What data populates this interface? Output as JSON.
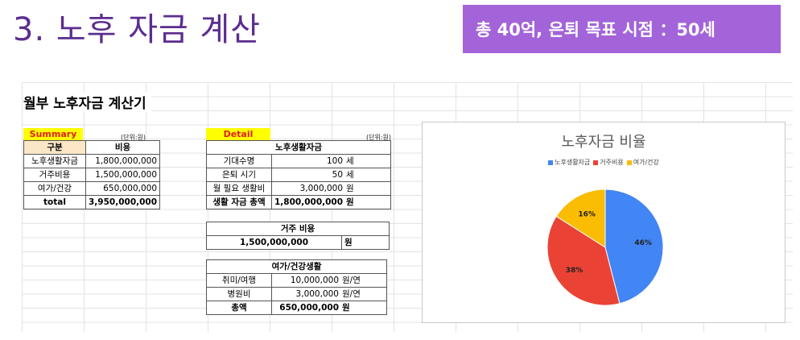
{
  "slide": {
    "title": "3. 노후 자금 계산",
    "goal": "총 40억, 은퇴 목표 시점 ：50세",
    "accent": "#a363d9",
    "title_color": "#5b2d8f"
  },
  "sheet": {
    "title": "월부 노후자금 계산기",
    "summary": {
      "label": "Summary",
      "unit": "(단위:원)",
      "headers": [
        "구분",
        "비용"
      ],
      "rows": [
        {
          "name": "노후생활자금",
          "value": "1,800,000,000"
        },
        {
          "name": "거주비용",
          "value": "1,500,000,000"
        },
        {
          "name": "여가/건강",
          "value": "650,000,000"
        }
      ],
      "total": {
        "name": "total",
        "value": "3,950,000,000"
      }
    },
    "detail": {
      "label": "Detail",
      "unit": "(단위:원)",
      "living": {
        "title": "노후생활자금",
        "rows": [
          {
            "name": "기대수명",
            "value": "100",
            "unit": "세"
          },
          {
            "name": "은퇴 시기",
            "value": "50",
            "unit": "세"
          },
          {
            "name": "월 필요 생활비",
            "value": "3,000,000",
            "unit": "원"
          }
        ],
        "total": {
          "name": "생활 자금 총액",
          "value": "1,800,000,000",
          "unit": "원"
        }
      },
      "housing": {
        "title": "거주 비용",
        "value": "1,500,000,000",
        "unit": "원"
      },
      "leisure": {
        "title": "여가/건강생활",
        "rows": [
          {
            "name": "취미/여행",
            "value": "10,000,000",
            "unit": "원/연"
          },
          {
            "name": "병원비",
            "value": "3,000,000",
            "unit": "원/연"
          }
        ],
        "total": {
          "name": "총액",
          "value": "650,000,000",
          "unit": "원"
        }
      }
    }
  },
  "chart_data": {
    "type": "pie",
    "title": "노후자금 비율",
    "legend_position": "top",
    "categories": [
      "노후생활자금",
      "거주비용",
      "여가/건강"
    ],
    "values": [
      46,
      38,
      16
    ],
    "labels": [
      "46%",
      "38%",
      "16%"
    ],
    "colors": [
      "#4285f4",
      "#ea4335",
      "#fbbc04"
    ]
  }
}
